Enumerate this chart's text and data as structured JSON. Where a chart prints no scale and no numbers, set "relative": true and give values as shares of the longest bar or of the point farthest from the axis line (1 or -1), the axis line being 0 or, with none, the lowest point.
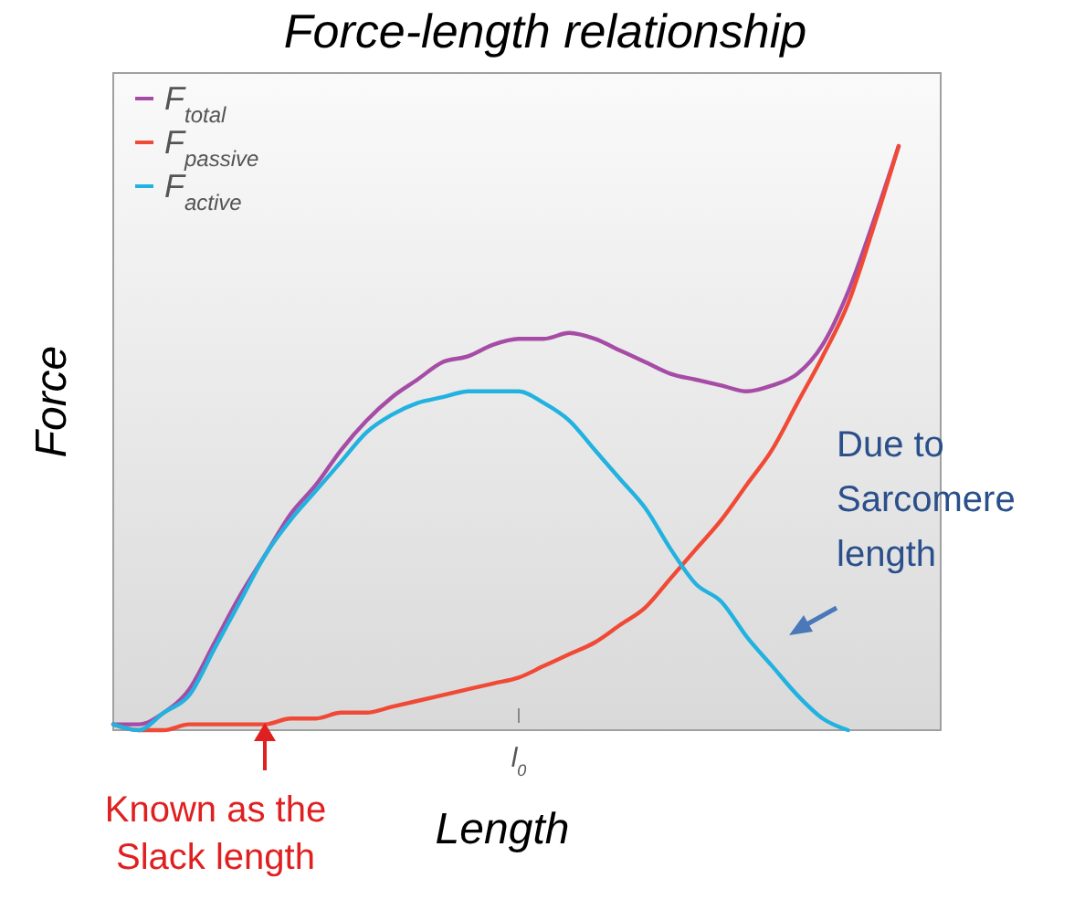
{
  "chart_data": {
    "type": "line",
    "title": "Force-length relationship",
    "xlabel": "Length",
    "ylabel": "Force",
    "relative": true,
    "legend": "top left",
    "marker": "none",
    "line_style": "solid",
    "grid": false,
    "categories": [
      null,
      null,
      null,
      null,
      null,
      null,
      null,
      null,
      null,
      null,
      null,
      null,
      null,
      null,
      null,
      null,
      null,
      null,
      null,
      null,
      null,
      null,
      null,
      null,
      null,
      null,
      null,
      null,
      null,
      null,
      null,
      null
    ],
    "series": [
      {
        "name": "F$_{total}$",
        "color": "#a64ca6",
        "values": [
          0.01,
          0.01,
          0.03,
          0.07,
          0.15,
          0.23,
          0.3,
          0.37,
          0.42,
          0.48,
          0.53,
          0.57,
          0.6,
          0.63,
          0.64,
          0.66,
          0.67,
          0.67,
          0.68,
          0.67,
          0.65,
          0.63,
          0.61,
          0.6,
          0.59,
          0.58,
          0.59,
          0.61,
          0.66,
          0.75,
          0.87,
          1
        ]
      },
      {
        "name": "F$_{passive}$",
        "color": "#f04a36",
        "values": [
          0.01,
          0,
          0,
          0.01,
          0.01,
          0.01,
          0.01,
          0.02,
          0.02,
          0.03,
          0.03,
          0.04,
          0.05,
          0.06,
          0.07,
          0.08,
          0.09,
          0.11,
          0.13,
          0.15,
          0.18,
          0.21,
          0.26,
          0.31,
          0.36,
          0.42,
          0.48,
          0.56,
          0.64,
          0.73,
          0.86,
          1
        ]
      },
      {
        "name": "F$_{active}$",
        "color": "#22b2e0",
        "values": [
          0.01,
          0,
          0.03,
          0.06,
          0.14,
          0.22,
          0.3,
          0.36,
          0.41,
          0.46,
          0.51,
          0.54,
          0.56,
          0.57,
          0.58,
          0.58,
          0.58,
          0.56,
          0.53,
          0.48,
          0.43,
          0.38,
          0.31,
          0.25,
          0.22,
          0.16,
          0.11,
          0.06,
          0.02,
          0,
          null,
          null
        ]
      }
    ],
    "annotations": [
      "l$_{0}$",
      "Known as the Slack length",
      "Due to Sarcomere length"
    ]
  }
}
